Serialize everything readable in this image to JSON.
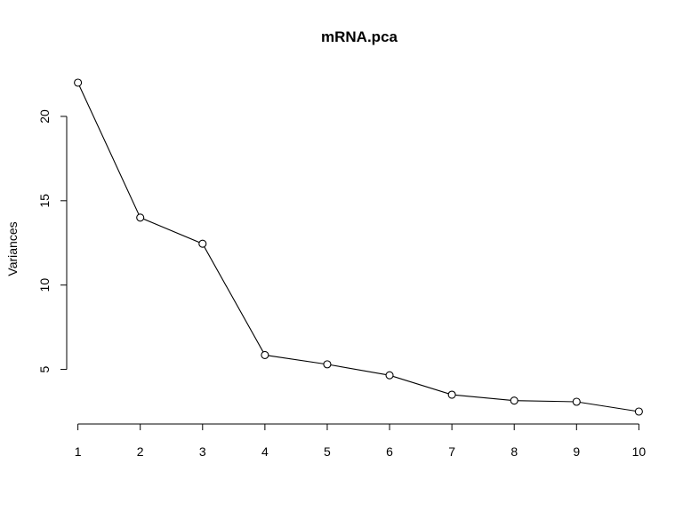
{
  "chart_data": {
    "type": "line",
    "title": "mRNA.pca",
    "xlabel": "",
    "ylabel": "Variances",
    "x": [
      1,
      2,
      3,
      4,
      5,
      6,
      7,
      8,
      9,
      10
    ],
    "values": [
      22.0,
      14.0,
      12.45,
      5.85,
      5.3,
      4.65,
      3.5,
      3.15,
      3.08,
      2.5
    ],
    "x_ticks": [
      "1",
      "2",
      "3",
      "4",
      "5",
      "6",
      "7",
      "8",
      "9",
      "10"
    ],
    "y_ticks": [
      "5",
      "10",
      "15",
      "20"
    ],
    "xlim": [
      0.82,
      10.18
    ],
    "ylim": [
      2.5,
      22.0
    ],
    "grid": false,
    "marker": "open-circle",
    "line_color": "#000000"
  }
}
